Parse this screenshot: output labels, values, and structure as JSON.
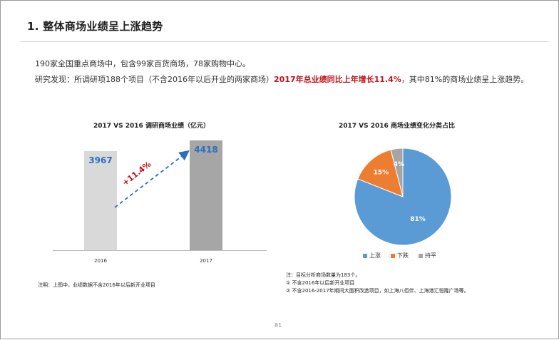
{
  "page": {
    "title": "1. 整体商场业绩呈上涨趋势",
    "para1": "190家全国重点商场中，包含99家百货商场，78家购物中心。",
    "para2_before": "研究发现：所调研项188个项目（不含2016年以后开业的两家商场）",
    "para2_highlight": "2017年总业绩同比上年增长11.4%",
    "para2_after": "，其中81%的商场业绩呈上涨趋势。",
    "page_number": "81"
  },
  "bar_chart_note": "注明：上图中，业绩数据不含2016年以后新开业项目",
  "pie_chart_notes": [
    "注：目标分析商场数量为183个。",
    "① 不含2016年以后新开业项目",
    "② 不含2016-2017年期间大面积改造项目，如上海八佰伴、上海港汇恒隆广场等。"
  ],
  "chart_data": [
    {
      "type": "bar",
      "title": "2017 VS 2016 调研商场业绩（亿元）",
      "categories": [
        "2016",
        "2017"
      ],
      "values": [
        3967,
        4418
      ],
      "colors": [
        "#d9d9d9",
        "#a6a6a6"
      ],
      "annotation": "+11.4%",
      "xlabel": "",
      "ylabel": ""
    },
    {
      "type": "pie",
      "title": "2017 VS 2016 商场业绩变化分类占比",
      "labels": [
        "上涨",
        "下跌",
        "持平"
      ],
      "values": [
        81,
        15,
        4
      ],
      "value_labels": [
        "81%",
        "15%",
        "4%"
      ],
      "colors": [
        "#5b9bd5",
        "#ed7d31",
        "#a5a5a5"
      ],
      "legend": "bottom"
    }
  ]
}
